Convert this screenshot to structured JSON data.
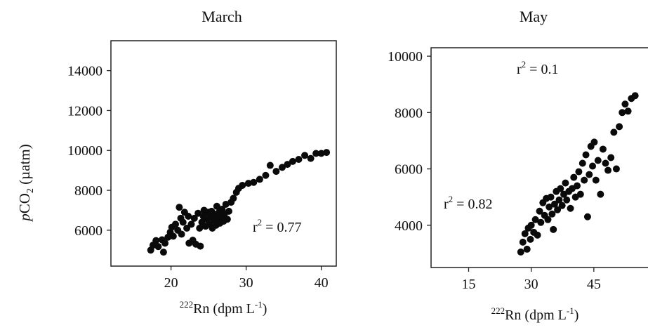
{
  "chart_data": [
    {
      "type": "scatter",
      "title": "March",
      "ylabel": "pCO2 (µatm)",
      "xlabel": "222Rn (dpm L-1)",
      "xlim": [
        12,
        42
      ],
      "ylim": [
        4200,
        15500
      ],
      "xticks": [
        20,
        30,
        40
      ],
      "yticks": [
        6000,
        8000,
        10000,
        12000,
        14000
      ],
      "grid": false,
      "annotations": [
        "r2 = 0.77"
      ],
      "points": [
        [
          17.3,
          5000
        ],
        [
          17.6,
          5250
        ],
        [
          18.0,
          5480
        ],
        [
          18.3,
          5180
        ],
        [
          18.8,
          5520
        ],
        [
          19.0,
          4900
        ],
        [
          19.2,
          5350
        ],
        [
          19.6,
          5650
        ],
        [
          19.9,
          5900
        ],
        [
          20.1,
          6150
        ],
        [
          20.3,
          5700
        ],
        [
          20.6,
          6300
        ],
        [
          20.9,
          6000
        ],
        [
          21.1,
          7150
        ],
        [
          21.3,
          6600
        ],
        [
          21.4,
          5800
        ],
        [
          21.6,
          6400
        ],
        [
          21.8,
          6900
        ],
        [
          22.1,
          6100
        ],
        [
          22.3,
          6700
        ],
        [
          22.4,
          5350
        ],
        [
          22.7,
          6300
        ],
        [
          22.9,
          5500
        ],
        [
          23.1,
          6600
        ],
        [
          23.3,
          5300
        ],
        [
          23.6,
          6850
        ],
        [
          23.8,
          6100
        ],
        [
          23.9,
          5200
        ],
        [
          24.1,
          6400
        ],
        [
          24.3,
          6700
        ],
        [
          24.4,
          7000
        ],
        [
          24.6,
          6200
        ],
        [
          24.8,
          6550
        ],
        [
          24.9,
          6900
        ],
        [
          25.1,
          6300
        ],
        [
          25.2,
          6650
        ],
        [
          25.4,
          6950
        ],
        [
          25.5,
          6100
        ],
        [
          25.7,
          6500
        ],
        [
          25.8,
          6800
        ],
        [
          26.0,
          6250
        ],
        [
          26.1,
          7200
        ],
        [
          26.2,
          6600
        ],
        [
          26.4,
          6900
        ],
        [
          26.5,
          6350
        ],
        [
          26.7,
          6700
        ],
        [
          26.8,
          7050
        ],
        [
          27.0,
          6450
        ],
        [
          27.1,
          6800
        ],
        [
          27.3,
          7300
        ],
        [
          27.5,
          6550
        ],
        [
          27.7,
          6950
        ],
        [
          28.0,
          7400
        ],
        [
          28.3,
          7600
        ],
        [
          28.7,
          7900
        ],
        [
          29.0,
          8100
        ],
        [
          29.5,
          8250
        ],
        [
          30.3,
          8350
        ],
        [
          31.0,
          8400
        ],
        [
          31.8,
          8550
        ],
        [
          32.6,
          8750
        ],
        [
          33.2,
          9250
        ],
        [
          34.0,
          8950
        ],
        [
          34.8,
          9150
        ],
        [
          35.5,
          9300
        ],
        [
          36.2,
          9450
        ],
        [
          37.0,
          9550
        ],
        [
          37.8,
          9750
        ],
        [
          38.6,
          9600
        ],
        [
          39.3,
          9850
        ],
        [
          40.0,
          9850
        ],
        [
          40.7,
          9900
        ]
      ]
    },
    {
      "type": "scatter",
      "title": "May",
      "ylabel": "",
      "xlabel": "222Rn (dpm L-1)",
      "xlim": [
        6,
        60
      ],
      "ylim": [
        2500,
        10300
      ],
      "xticks": [
        15,
        30,
        45
      ],
      "yticks": [
        4000,
        6000,
        8000,
        10000
      ],
      "grid": false,
      "annotations": [
        "r2 = 0.1",
        "r2 = 0.82"
      ],
      "points": [
        [
          27.5,
          3050
        ],
        [
          28.0,
          3400
        ],
        [
          28.5,
          3700
        ],
        [
          29.0,
          3150
        ],
        [
          29.3,
          3900
        ],
        [
          29.8,
          3500
        ],
        [
          30.0,
          4000
        ],
        [
          30.6,
          3750
        ],
        [
          31.0,
          4200
        ],
        [
          31.5,
          3650
        ],
        [
          32.0,
          4500
        ],
        [
          32.3,
          4100
        ],
        [
          32.8,
          4800
        ],
        [
          33.2,
          4350
        ],
        [
          33.6,
          4950
        ],
        [
          34.0,
          4200
        ],
        [
          34.3,
          4650
        ],
        [
          34.7,
          5000
        ],
        [
          35.0,
          4400
        ],
        [
          35.3,
          3850
        ],
        [
          35.6,
          4750
        ],
        [
          36.0,
          5200
        ],
        [
          36.3,
          4550
        ],
        [
          36.7,
          4900
        ],
        [
          37.0,
          5300
        ],
        [
          37.4,
          4700
        ],
        [
          37.8,
          5100
        ],
        [
          38.2,
          5500
        ],
        [
          38.5,
          4900
        ],
        [
          39.0,
          5200
        ],
        [
          39.4,
          4600
        ],
        [
          39.8,
          5300
        ],
        [
          40.2,
          5700
        ],
        [
          40.6,
          5000
        ],
        [
          41.0,
          5400
        ],
        [
          41.4,
          5900
        ],
        [
          41.8,
          5100
        ],
        [
          42.3,
          6200
        ],
        [
          42.7,
          5600
        ],
        [
          43.1,
          6500
        ],
        [
          43.5,
          4300
        ],
        [
          43.9,
          5800
        ],
        [
          44.3,
          6800
        ],
        [
          44.7,
          6100
        ],
        [
          45.1,
          6950
        ],
        [
          45.5,
          5600
        ],
        [
          46.0,
          6300
        ],
        [
          46.6,
          5100
        ],
        [
          47.2,
          6700
        ],
        [
          47.8,
          6200
        ],
        [
          48.4,
          5950
        ],
        [
          49.1,
          6400
        ],
        [
          49.8,
          7300
        ],
        [
          50.4,
          6000
        ],
        [
          51.1,
          7500
        ],
        [
          51.8,
          8000
        ],
        [
          52.5,
          8300
        ],
        [
          53.2,
          8050
        ],
        [
          54.0,
          8500
        ],
        [
          54.9,
          8600
        ]
      ]
    }
  ]
}
